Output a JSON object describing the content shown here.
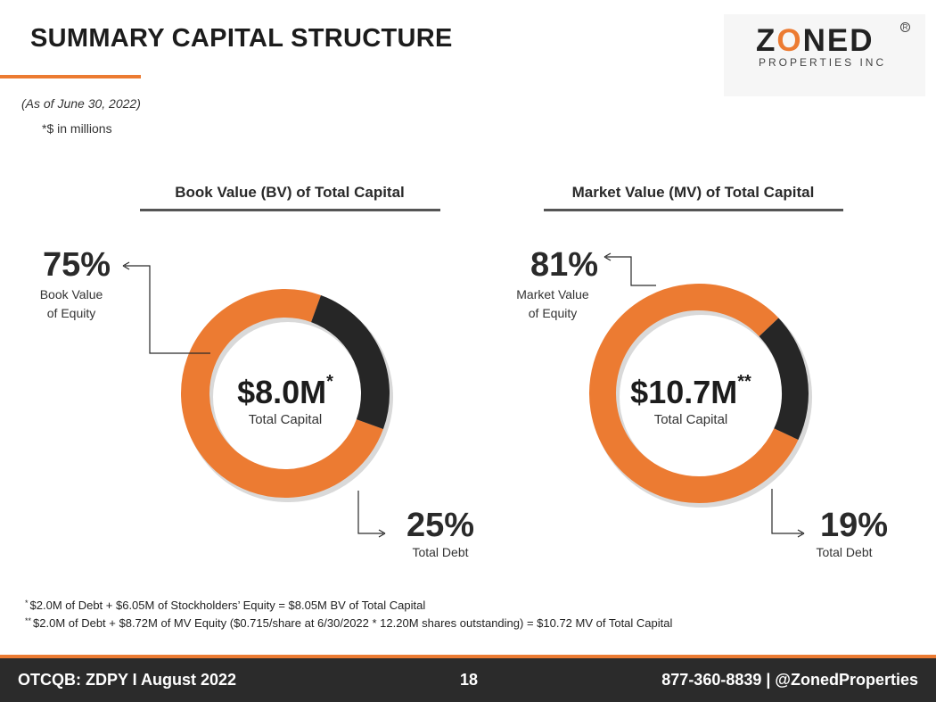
{
  "header": {
    "title": "SUMMARY CAPITAL STRUCTURE",
    "logo_main_1": "Z",
    "logo_main_o": "O",
    "logo_main_2": "NED",
    "logo_sub": "PROPERTIES INC",
    "logo_reg": "R",
    "as_of": "(As of June 30, 2022)",
    "units": "*$ in millions"
  },
  "chart_data": [
    {
      "type": "pie",
      "title": "Book Value (BV) of Total Capital",
      "center_value": "$8.0M",
      "center_marker": "*",
      "center_label": "Total Capital",
      "slices": [
        {
          "pct_text": "75%",
          "label": "Book Value",
          "label2": "of Equity",
          "value": 75,
          "color": "#ec7b32"
        },
        {
          "pct_text": "25%",
          "label": "Total Debt",
          "label2": "",
          "value": 25,
          "color": "#262626"
        }
      ]
    },
    {
      "type": "pie",
      "title": "Market Value (MV) of Total Capital",
      "center_value": "$10.7M",
      "center_marker": "**",
      "center_label": "Total Capital",
      "slices": [
        {
          "pct_text": "81%",
          "label": "Market Value",
          "label2": "of Equity",
          "value": 81,
          "color": "#ec7b32"
        },
        {
          "pct_text": "19%",
          "label": "Total Debt",
          "label2": "",
          "value": 19,
          "color": "#262626"
        }
      ]
    }
  ],
  "notes": [
    {
      "marker": "*",
      "text": "$2.0M of Debt + $6.05M of Stockholders’ Equity = $8.05M BV of Total Capital"
    },
    {
      "marker": "**",
      "text": "$2.0M of Debt + $8.72M of MV Equity ($0.715/share at 6/30/2022 * 12.20M shares outstanding) = $10.72 MV of Total Capital"
    }
  ],
  "footer": {
    "left": "OTCQB: ZDPY I August 2022",
    "page": "18",
    "right": "877-360-8839 | @ZonedProperties"
  },
  "colors": {
    "accent": "#ec7b32",
    "dark": "#262626",
    "footer_bg": "#2b2b2b"
  }
}
